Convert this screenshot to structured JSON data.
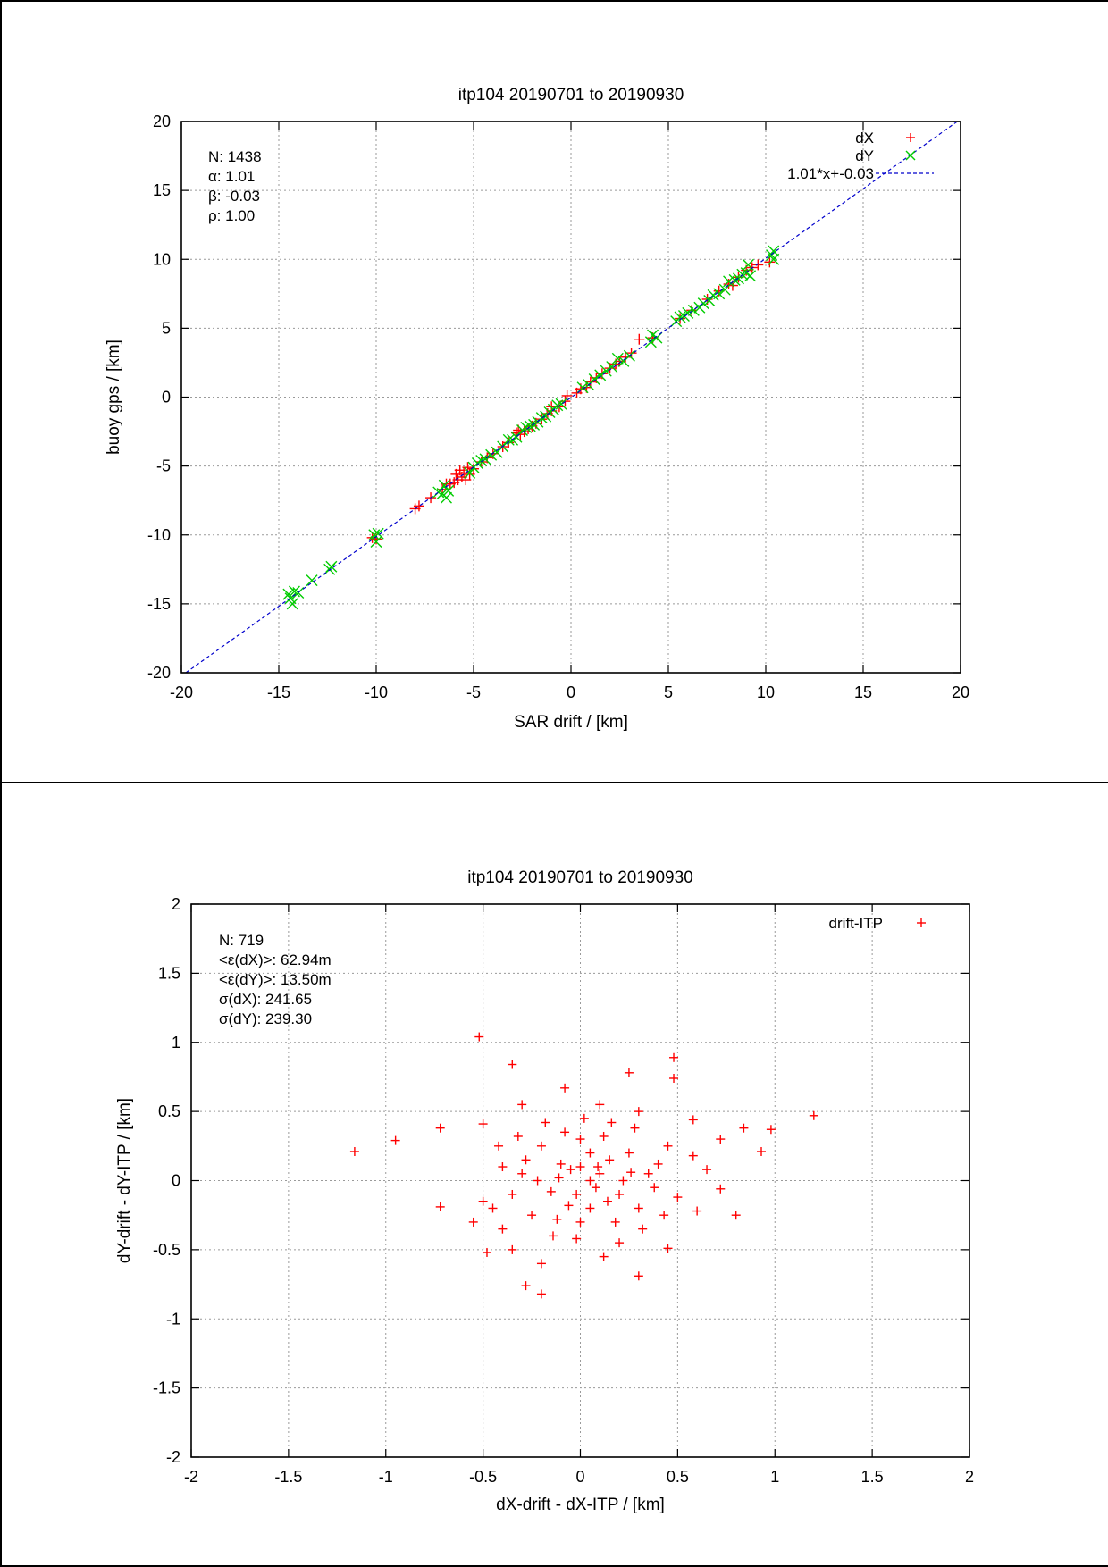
{
  "chart_data": [
    {
      "type": "scatter",
      "title": "itp104 20190701 to 20190930",
      "xlabel": "SAR drift / [km]",
      "ylabel": "buoy gps / [km]",
      "xlim": [
        -20,
        20
      ],
      "ylim": [
        -20,
        20
      ],
      "xticks": [
        -20,
        -15,
        -10,
        -5,
        0,
        5,
        10,
        15,
        20
      ],
      "yticks": [
        -20,
        -15,
        -10,
        -5,
        0,
        5,
        10,
        15,
        20
      ],
      "x_tick_labels": [
        "-20",
        "-15",
        "-10",
        "-5",
        "0",
        "5",
        "10",
        "15",
        "20"
      ],
      "y_tick_labels": [
        "-20",
        "-15",
        "-10",
        "-5",
        "0",
        "5",
        "10",
        "15",
        "20"
      ],
      "grid": true,
      "legend_position": "top-right",
      "stats_text": [
        "N: 1438",
        "α: 1.01",
        "β: -0.03",
        "ρ: 1.00"
      ],
      "series": [
        {
          "name": "dX",
          "marker": "plus",
          "color": "#ff0000",
          "points": [
            [
              -10.2,
              -10.2
            ],
            [
              -10.0,
              -10.3
            ],
            [
              -8,
              -8.1
            ],
            [
              -7.8,
              -7.9
            ],
            [
              -7.2,
              -7.3
            ],
            [
              -6.6,
              -6.7
            ],
            [
              -6.4,
              -6.3
            ],
            [
              -6.2,
              -6.3
            ],
            [
              -6.0,
              -6.2
            ],
            [
              -5.9,
              -5.6
            ],
            [
              -5.8,
              -6.0
            ],
            [
              -5.7,
              -5.3
            ],
            [
              -5.6,
              -5.8
            ],
            [
              -5.5,
              -5.5
            ],
            [
              -5.4,
              -6.0
            ],
            [
              -5.3,
              -5.1
            ],
            [
              -5.2,
              -5.6
            ],
            [
              -5.0,
              -5.2
            ],
            [
              -4.6,
              -4.7
            ],
            [
              -4.3,
              -4.4
            ],
            [
              -4.0,
              -4.1
            ],
            [
              -3.5,
              -3.6
            ],
            [
              -3.2,
              -3.3
            ],
            [
              -2.8,
              -2.6
            ],
            [
              -2.6,
              -2.7
            ],
            [
              -2.4,
              -2.5
            ],
            [
              -2.2,
              -2.3
            ],
            [
              -2.0,
              -2.1
            ],
            [
              -1.8,
              -1.9
            ],
            [
              -1.5,
              -1.6
            ],
            [
              -1.2,
              -1.2
            ],
            [
              -1.0,
              -1.0
            ],
            [
              -0.6,
              -0.7
            ],
            [
              -0.3,
              -0.3
            ],
            [
              0.3,
              0.3
            ],
            [
              0.5,
              0.6
            ],
            [
              0.8,
              0.7
            ],
            [
              1.0,
              1.1
            ],
            [
              1.3,
              1.4
            ],
            [
              1.6,
              1.7
            ],
            [
              2.0,
              2.1
            ],
            [
              2.3,
              2.4
            ],
            [
              2.5,
              2.6
            ],
            [
              2.8,
              2.9
            ],
            [
              3.1,
              3.2
            ],
            [
              3.5,
              4.2
            ],
            [
              4.2,
              4.3
            ],
            [
              5.6,
              5.7
            ],
            [
              6.2,
              6.3
            ],
            [
              7.0,
              7.1
            ],
            [
              7.6,
              7.7
            ],
            [
              8.1,
              8.2
            ],
            [
              8.3,
              8.1
            ],
            [
              8.6,
              8.7
            ],
            [
              9.0,
              9.2
            ],
            [
              9.3,
              9.4
            ],
            [
              9.6,
              9.6
            ],
            [
              10.2,
              9.8
            ],
            [
              -1.0,
              -0.7
            ],
            [
              -2.7,
              -2.4
            ],
            [
              -0.2,
              0.1
            ]
          ]
        },
        {
          "name": "dY",
          "marker": "cross",
          "color": "#00cc00",
          "points": [
            [
              -14.5,
              -14.3
            ],
            [
              -14.4,
              -14.6
            ],
            [
              -14.3,
              -15.0
            ],
            [
              -14.2,
              -14.1
            ],
            [
              -14.0,
              -14.2
            ],
            [
              -13.3,
              -13.3
            ],
            [
              -12.4,
              -12.5
            ],
            [
              -12.3,
              -12.3
            ],
            [
              -10.1,
              -10.0
            ],
            [
              -10.0,
              -10.5
            ],
            [
              -9.9,
              -9.9
            ],
            [
              -6.8,
              -6.9
            ],
            [
              -6.6,
              -7.0
            ],
            [
              -6.5,
              -6.4
            ],
            [
              -6.4,
              -7.3
            ],
            [
              -6.3,
              -6.8
            ],
            [
              -5.2,
              -5.5
            ],
            [
              -5.0,
              -5.1
            ],
            [
              -4.8,
              -4.8
            ],
            [
              -4.6,
              -4.6
            ],
            [
              -4.4,
              -4.5
            ],
            [
              -4.1,
              -4.2
            ],
            [
              -3.8,
              -4.0
            ],
            [
              -3.5,
              -3.6
            ],
            [
              -3.2,
              -3.1
            ],
            [
              -3.0,
              -3.1
            ],
            [
              -2.8,
              -2.9
            ],
            [
              -2.5,
              -2.4
            ],
            [
              -2.3,
              -2.2
            ],
            [
              -2.1,
              -2.1
            ],
            [
              -1.9,
              -2.0
            ],
            [
              -1.7,
              -1.8
            ],
            [
              -1.5,
              -1.5
            ],
            [
              -1.3,
              -1.4
            ],
            [
              -1.1,
              -1.1
            ],
            [
              -0.9,
              -0.9
            ],
            [
              -0.7,
              -0.6
            ],
            [
              -0.5,
              -0.5
            ],
            [
              0.6,
              0.7
            ],
            [
              0.9,
              0.9
            ],
            [
              1.2,
              1.3
            ],
            [
              1.5,
              1.6
            ],
            [
              1.8,
              1.9
            ],
            [
              2.1,
              2.2
            ],
            [
              2.4,
              2.8
            ],
            [
              2.7,
              2.6
            ],
            [
              3.0,
              3.0
            ],
            [
              4.1,
              4.0
            ],
            [
              4.2,
              4.5
            ],
            [
              4.4,
              4.3
            ],
            [
              5.4,
              5.5
            ],
            [
              5.6,
              5.8
            ],
            [
              5.8,
              5.9
            ],
            [
              6.0,
              6.1
            ],
            [
              6.3,
              6.3
            ],
            [
              6.6,
              6.5
            ],
            [
              6.8,
              6.8
            ],
            [
              7.1,
              7.0
            ],
            [
              7.3,
              7.4
            ],
            [
              7.6,
              7.5
            ],
            [
              7.9,
              7.8
            ],
            [
              8.1,
              8.4
            ],
            [
              8.4,
              8.5
            ],
            [
              8.6,
              8.6
            ],
            [
              8.8,
              8.9
            ],
            [
              9.0,
              9.0
            ],
            [
              9.1,
              9.6
            ],
            [
              9.2,
              8.8
            ],
            [
              10.4,
              10.0
            ],
            [
              10.4,
              10.6
            ],
            [
              10.3,
              10.3
            ]
          ]
        },
        {
          "name": "1.01*x+-0.03",
          "marker": "line",
          "color": "#0000cc",
          "slope": 1.01,
          "intercept": -0.03
        }
      ]
    },
    {
      "type": "scatter",
      "title": "itp104 20190701 to 20190930",
      "xlabel": "dX-drift - dX-ITP / [km]",
      "ylabel": "dY-drift - dY-ITP / [km]",
      "xlim": [
        -2,
        2
      ],
      "ylim": [
        -2,
        2
      ],
      "xticks": [
        -2,
        -1.5,
        -1,
        -0.5,
        0,
        0.5,
        1,
        1.5,
        2
      ],
      "yticks": [
        -2,
        -1.5,
        -1,
        -0.5,
        0,
        0.5,
        1,
        1.5,
        2
      ],
      "x_tick_labels": [
        "-2",
        "-1.5",
        "-1",
        "-0.5",
        "0",
        "0.5",
        "1",
        "1.5",
        "2"
      ],
      "y_tick_labels": [
        "-2",
        "-1.5",
        "-1",
        "-0.5",
        "0",
        "0.5",
        "1",
        "1.5",
        "2"
      ],
      "grid": true,
      "legend_position": "top-right",
      "stats_text": [
        "N: 719",
        "<ε(dX)>:  62.94m",
        "<ε(dY)>: 13.50m",
        "σ(dX):  241.65",
        "σ(dY):  239.30"
      ],
      "series": [
        {
          "name": "drift-ITP",
          "marker": "plus",
          "color": "#ff0000",
          "points": [
            [
              -1.16,
              0.21
            ],
            [
              -0.95,
              0.29
            ],
            [
              -0.72,
              0.38
            ],
            [
              -0.72,
              -0.19
            ],
            [
              -0.52,
              1.04
            ],
            [
              -0.35,
              0.84
            ],
            [
              -0.5,
              0.41
            ],
            [
              -0.48,
              -0.52
            ],
            [
              -0.55,
              -0.3
            ],
            [
              -0.28,
              -0.76
            ],
            [
              -0.2,
              -0.82
            ],
            [
              -0.08,
              0.67
            ],
            [
              0.25,
              0.78
            ],
            [
              0.48,
              0.89
            ],
            [
              0.48,
              0.74
            ],
            [
              0.58,
              0.44
            ],
            [
              0.72,
              0.3
            ],
            [
              0.84,
              0.38
            ],
            [
              0.93,
              0.21
            ],
            [
              0.98,
              0.37
            ],
            [
              1.2,
              0.47
            ],
            [
              0.8,
              -0.25
            ],
            [
              0.72,
              -0.06
            ],
            [
              0.6,
              -0.22
            ],
            [
              0.45,
              -0.49
            ],
            [
              0.3,
              -0.69
            ],
            [
              0.12,
              -0.55
            ],
            [
              -0.35,
              -0.5
            ],
            [
              -0.5,
              -0.15
            ],
            [
              0.58,
              0.18
            ],
            [
              0.65,
              0.08
            ],
            [
              -0.42,
              0.25
            ],
            [
              -0.3,
              0.55
            ],
            [
              0.1,
              0.55
            ],
            [
              0.3,
              0.5
            ],
            [
              0.45,
              0.25
            ],
            [
              -0.4,
              -0.35
            ],
            [
              0.5,
              -0.12
            ],
            [
              -0.2,
              -0.6
            ],
            [
              0.2,
              -0.45
            ],
            [
              0.0,
              0.1
            ],
            [
              0.05,
              0.0
            ],
            [
              0.1,
              0.05
            ],
            [
              -0.05,
              0.08
            ],
            [
              0.08,
              -0.05
            ],
            [
              -0.02,
              -0.1
            ],
            [
              0.15,
              0.15
            ],
            [
              -0.1,
              0.12
            ],
            [
              0.2,
              -0.1
            ],
            [
              -0.15,
              -0.08
            ],
            [
              0.25,
              0.2
            ],
            [
              -0.2,
              0.25
            ],
            [
              0.3,
              -0.2
            ],
            [
              -0.25,
              -0.25
            ],
            [
              0.35,
              0.05
            ],
            [
              -0.3,
              0.05
            ],
            [
              0.0,
              0.3
            ],
            [
              0.0,
              -0.3
            ],
            [
              0.12,
              0.32
            ],
            [
              -0.12,
              -0.28
            ],
            [
              0.22,
              0.0
            ],
            [
              -0.22,
              0.0
            ],
            [
              0.05,
              0.2
            ],
            [
              0.05,
              -0.2
            ],
            [
              -0.08,
              0.35
            ],
            [
              0.38,
              -0.05
            ],
            [
              -0.35,
              -0.1
            ],
            [
              0.18,
              -0.3
            ],
            [
              0.28,
              0.38
            ],
            [
              -0.18,
              0.42
            ],
            [
              0.4,
              0.12
            ],
            [
              -0.4,
              0.1
            ],
            [
              0.02,
              0.45
            ],
            [
              -0.02,
              -0.42
            ],
            [
              0.32,
              -0.35
            ],
            [
              -0.32,
              0.32
            ],
            [
              0.14,
              -0.15
            ],
            [
              -0.06,
              -0.18
            ],
            [
              0.09,
              0.1
            ],
            [
              -0.11,
              0.02
            ],
            [
              0.43,
              -0.25
            ],
            [
              -0.45,
              -0.2
            ],
            [
              0.26,
              0.06
            ],
            [
              -0.28,
              0.15
            ],
            [
              0.16,
              0.42
            ],
            [
              -0.14,
              -0.4
            ]
          ]
        }
      ]
    }
  ]
}
